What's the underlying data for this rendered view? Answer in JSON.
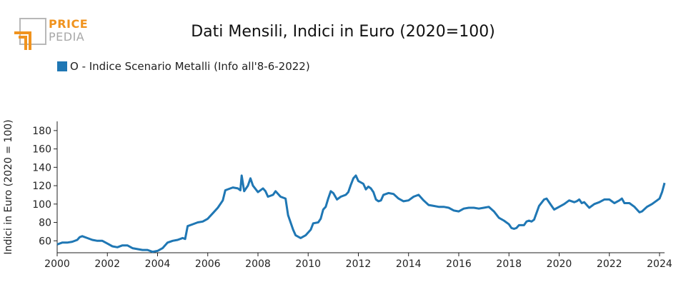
{
  "logo": {
    "line1": "PRICE",
    "line2": "PEDIA"
  },
  "chart_data": {
    "type": "line",
    "title": "Dati Mensili, Indici in Euro (2020=100)",
    "ylabel": "Indici in Euro (2020 = 100)",
    "xlabel": "",
    "xlim": [
      2000,
      2024.2
    ],
    "ylim": [
      47,
      190
    ],
    "x_ticks": [
      2000,
      2002,
      2004,
      2006,
      2008,
      2010,
      2012,
      2014,
      2016,
      2018,
      2020,
      2022,
      2024
    ],
    "y_ticks": [
      60,
      80,
      100,
      120,
      140,
      160,
      180
    ],
    "grid": false,
    "legend_position": "top-left",
    "series": [
      {
        "name": "O - Indice Scenario Metalli (Info all'8-6-2022)",
        "color": "#1f77b4",
        "points": [
          [
            2000.0,
            56
          ],
          [
            2000.2,
            58
          ],
          [
            2000.4,
            58
          ],
          [
            2000.6,
            59
          ],
          [
            2000.8,
            61
          ],
          [
            2000.9,
            64
          ],
          [
            2001.0,
            65
          ],
          [
            2001.2,
            63
          ],
          [
            2001.4,
            61
          ],
          [
            2001.6,
            60
          ],
          [
            2001.8,
            60
          ],
          [
            2002.0,
            57
          ],
          [
            2002.2,
            54
          ],
          [
            2002.4,
            53
          ],
          [
            2002.6,
            55
          ],
          [
            2002.8,
            55
          ],
          [
            2003.0,
            52
          ],
          [
            2003.2,
            51
          ],
          [
            2003.4,
            50
          ],
          [
            2003.6,
            50
          ],
          [
            2003.8,
            48
          ],
          [
            2004.0,
            49
          ],
          [
            2004.2,
            52
          ],
          [
            2004.4,
            58
          ],
          [
            2004.6,
            60
          ],
          [
            2004.8,
            61
          ],
          [
            2005.0,
            63
          ],
          [
            2005.1,
            62
          ],
          [
            2005.2,
            76
          ],
          [
            2005.4,
            78
          ],
          [
            2005.6,
            80
          ],
          [
            2005.8,
            81
          ],
          [
            2006.0,
            84
          ],
          [
            2006.2,
            90
          ],
          [
            2006.4,
            96
          ],
          [
            2006.6,
            104
          ],
          [
            2006.7,
            115
          ],
          [
            2006.9,
            117
          ],
          [
            2007.0,
            118
          ],
          [
            2007.2,
            117
          ],
          [
            2007.3,
            115
          ],
          [
            2007.35,
            131
          ],
          [
            2007.45,
            114
          ],
          [
            2007.6,
            120
          ],
          [
            2007.7,
            128
          ],
          [
            2007.8,
            120
          ],
          [
            2008.0,
            113
          ],
          [
            2008.2,
            117
          ],
          [
            2008.3,
            114
          ],
          [
            2008.4,
            108
          ],
          [
            2008.6,
            110
          ],
          [
            2008.7,
            114
          ],
          [
            2008.9,
            108
          ],
          [
            2009.1,
            106
          ],
          [
            2009.2,
            88
          ],
          [
            2009.4,
            72
          ],
          [
            2009.5,
            66
          ],
          [
            2009.7,
            63
          ],
          [
            2009.9,
            66
          ],
          [
            2010.1,
            72
          ],
          [
            2010.2,
            79
          ],
          [
            2010.4,
            80
          ],
          [
            2010.5,
            84
          ],
          [
            2010.6,
            94
          ],
          [
            2010.7,
            97
          ],
          [
            2010.8,
            106
          ],
          [
            2010.9,
            114
          ],
          [
            2011.0,
            112
          ],
          [
            2011.15,
            105
          ],
          [
            2011.3,
            108
          ],
          [
            2011.5,
            110
          ],
          [
            2011.6,
            113
          ],
          [
            2011.7,
            121
          ],
          [
            2011.8,
            128
          ],
          [
            2011.9,
            131
          ],
          [
            2012.0,
            125
          ],
          [
            2012.2,
            122
          ],
          [
            2012.3,
            116
          ],
          [
            2012.4,
            119
          ],
          [
            2012.5,
            117
          ],
          [
            2012.6,
            113
          ],
          [
            2012.7,
            105
          ],
          [
            2012.8,
            103
          ],
          [
            2012.9,
            104
          ],
          [
            2013.0,
            110
          ],
          [
            2013.2,
            112
          ],
          [
            2013.4,
            111
          ],
          [
            2013.6,
            106
          ],
          [
            2013.8,
            103
          ],
          [
            2014.0,
            104
          ],
          [
            2014.2,
            108
          ],
          [
            2014.4,
            110
          ],
          [
            2014.6,
            104
          ],
          [
            2014.8,
            99
          ],
          [
            2015.0,
            98
          ],
          [
            2015.2,
            97
          ],
          [
            2015.4,
            97
          ],
          [
            2015.6,
            96
          ],
          [
            2015.8,
            93
          ],
          [
            2016.0,
            92
          ],
          [
            2016.2,
            95
          ],
          [
            2016.4,
            96
          ],
          [
            2016.6,
            96
          ],
          [
            2016.8,
            95
          ],
          [
            2017.0,
            96
          ],
          [
            2017.2,
            97
          ],
          [
            2017.4,
            92
          ],
          [
            2017.6,
            85
          ],
          [
            2017.8,
            82
          ],
          [
            2018.0,
            78
          ],
          [
            2018.1,
            74
          ],
          [
            2018.2,
            73
          ],
          [
            2018.3,
            74
          ],
          [
            2018.4,
            77
          ],
          [
            2018.6,
            77
          ],
          [
            2018.7,
            81
          ],
          [
            2018.8,
            82
          ],
          [
            2018.9,
            81
          ],
          [
            2019.0,
            83
          ],
          [
            2019.2,
            98
          ],
          [
            2019.4,
            105
          ],
          [
            2019.5,
            106
          ],
          [
            2019.7,
            98
          ],
          [
            2019.8,
            94
          ],
          [
            2020.0,
            97
          ],
          [
            2020.2,
            100
          ],
          [
            2020.4,
            104
          ],
          [
            2020.6,
            102
          ],
          [
            2020.7,
            103
          ],
          [
            2020.8,
            105
          ],
          [
            2020.9,
            101
          ],
          [
            2021.0,
            102
          ],
          [
            2021.2,
            96
          ],
          [
            2021.4,
            100
          ],
          [
            2021.6,
            102
          ],
          [
            2021.8,
            105
          ],
          [
            2022.0,
            105
          ],
          [
            2022.2,
            101
          ],
          [
            2022.4,
            104
          ],
          [
            2022.5,
            106
          ],
          [
            2022.6,
            101
          ],
          [
            2022.8,
            101
          ],
          [
            2023.0,
            97
          ],
          [
            2023.2,
            91
          ],
          [
            2023.3,
            92
          ],
          [
            2023.5,
            97
          ],
          [
            2023.7,
            100
          ],
          [
            2023.9,
            104
          ],
          [
            2024.0,
            106
          ],
          [
            2024.1,
            113
          ],
          [
            2024.2,
            123
          ]
        ]
      }
    ]
  }
}
